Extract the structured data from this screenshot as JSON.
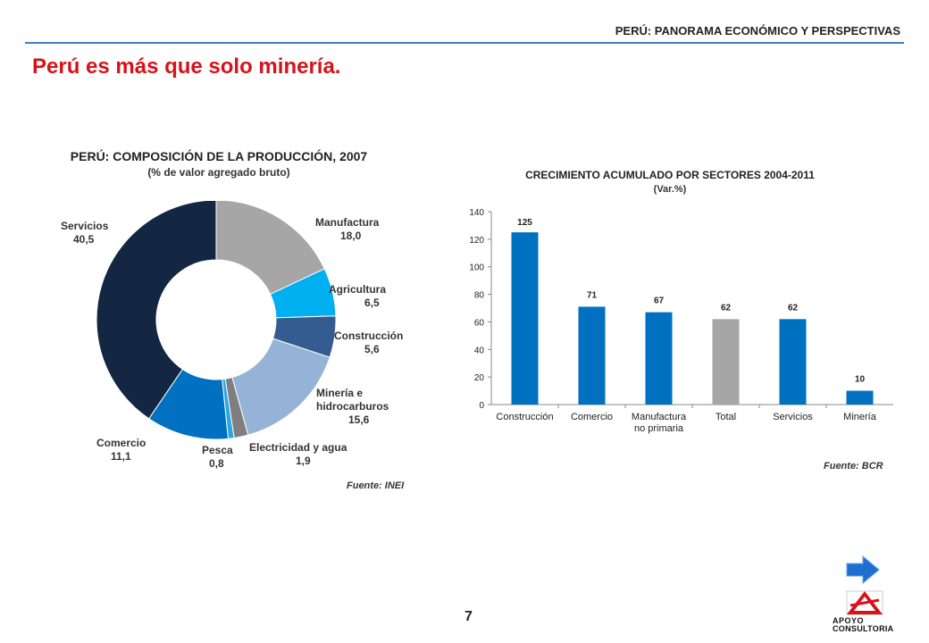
{
  "header": {
    "text": "PERÚ: PANORAMA ECONÓMICO Y PERSPECTIVAS",
    "line_color": "#3c7fc1"
  },
  "page": {
    "title": "Perú es más que solo minería.",
    "number": "7"
  },
  "logo": {
    "line1": "APOYO",
    "line2": "CONSULTORIA"
  },
  "nav": {
    "icon": "arrow-right-icon"
  },
  "pie_chart": {
    "title": "PERÚ: COMPOSICIÓN DE LA PRODUCCIÓN,  2007",
    "subtitle": "(% de valor agregado bruto)",
    "source": "Fuente: INEI"
  },
  "bar_chart": {
    "title": "CRECIMIENTO ACUMULADO  POR SECTORES 2004-2011",
    "subtitle": "(Var.%)",
    "source": "Fuente: BCR"
  },
  "chart_data": [
    {
      "type": "pie",
      "title": "PERÚ: COMPOSICIÓN DE LA PRODUCCIÓN,  2007",
      "subtitle": "(% de valor agregado bruto)",
      "donut": true,
      "slices": [
        {
          "label": "Manufactura",
          "value": 18.0,
          "display": "18,0",
          "color": "#a6a6a6"
        },
        {
          "label": "Agricultura",
          "value": 6.5,
          "display": "6,5",
          "color": "#00b0f0"
        },
        {
          "label": "Construcción",
          "value": 5.6,
          "display": "5,6",
          "color": "#355c91"
        },
        {
          "label": "Minería e hidrocarburos",
          "value": 15.6,
          "display": "15,6",
          "color": "#95b3d7"
        },
        {
          "label": "Electricidad y agua",
          "value": 1.9,
          "display": "1,9",
          "color": "#7f7f7f"
        },
        {
          "label": "Pesca",
          "value": 0.8,
          "display": "0,8",
          "color": "#29a8e0"
        },
        {
          "label": "Comercio",
          "value": 11.1,
          "display": "11,1",
          "color": "#0070c0"
        },
        {
          "label": "Servicios",
          "value": 40.5,
          "display": "40,5",
          "color": "#132742"
        }
      ],
      "source": "Fuente: INEI"
    },
    {
      "type": "bar",
      "title": "CRECIMIENTO ACUMULADO  POR SECTORES 2004-2011",
      "subtitle": "(Var.%)",
      "categories": [
        "Construcción",
        "Comercio",
        "Manufactura no primaria",
        "Total",
        "Servicios",
        "Minería"
      ],
      "category_lines": [
        [
          "Construcción"
        ],
        [
          "Comercio"
        ],
        [
          "Manufactura",
          "no primaria"
        ],
        [
          "Total"
        ],
        [
          "Servicios"
        ],
        [
          "Minería"
        ]
      ],
      "values": [
        125,
        71,
        67,
        62,
        62,
        10
      ],
      "colors": [
        "#0070c0",
        "#0070c0",
        "#0070c0",
        "#a6a6a6",
        "#0070c0",
        "#0070c0"
      ],
      "ylim": [
        0,
        140
      ],
      "yticks": [
        0,
        20,
        40,
        60,
        80,
        100,
        120,
        140
      ],
      "grid": false,
      "source": "Fuente: BCR"
    }
  ]
}
